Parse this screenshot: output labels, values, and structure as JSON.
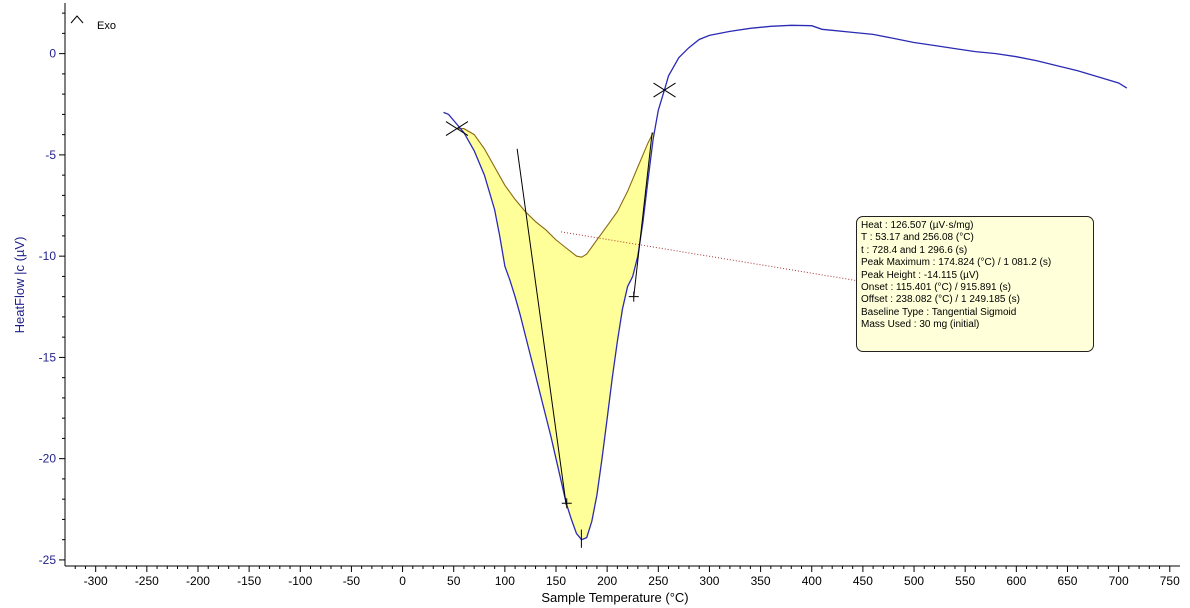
{
  "exo_label": "Exo",
  "chart_data": {
    "type": "line",
    "title": "",
    "xlabel": "Sample Temperature (°C)",
    "ylabel": "HeatFlow |c (µV)",
    "xlim": [
      -330,
      760
    ],
    "ylim": [
      -25.3,
      2.5
    ],
    "xticks": [
      -300,
      -250,
      -200,
      -150,
      -100,
      -50,
      0,
      50,
      100,
      150,
      200,
      250,
      300,
      350,
      400,
      450,
      500,
      550,
      600,
      650,
      700,
      750
    ],
    "yticks": [
      0,
      -5,
      -10,
      -15,
      -20,
      -25
    ],
    "grid": false,
    "legend": "none",
    "colors": {
      "curve": "#2b2bb4",
      "baseline": "#8b6914",
      "fill": "#ffff99",
      "leader": "#a83232",
      "axis_text": "#1f1f8a",
      "box_bg": "#ffffd9"
    },
    "series": [
      {
        "x": [
          40,
          45,
          50,
          55,
          60,
          70,
          80,
          90,
          95,
          100,
          105,
          110,
          115,
          120,
          125,
          130,
          135,
          140,
          145,
          150,
          155,
          160,
          165,
          170,
          175,
          180,
          185,
          190,
          195,
          200,
          205,
          210,
          215,
          220,
          225,
          230,
          235,
          240,
          245,
          250,
          256,
          260,
          270,
          280,
          290,
          300,
          320,
          340,
          360,
          380,
          400,
          410,
          420,
          440,
          460,
          480,
          500,
          520,
          540,
          560,
          580,
          600,
          620,
          640,
          660,
          680,
          700,
          708
        ],
        "y": [
          -2.9,
          -3.0,
          -3.3,
          -3.6,
          -3.9,
          -4.8,
          -6.0,
          -7.7,
          -9.0,
          -10.5,
          -11.2,
          -12.0,
          -12.9,
          -13.9,
          -14.9,
          -15.9,
          -16.9,
          -17.9,
          -18.9,
          -20.0,
          -21.1,
          -22.2,
          -23.0,
          -23.7,
          -24.0,
          -23.9,
          -23.1,
          -21.8,
          -20.0,
          -18.0,
          -16.0,
          -14.2,
          -12.6,
          -11.5,
          -11.0,
          -10.0,
          -8.3,
          -6.2,
          -4.2,
          -2.8,
          -1.8,
          -1.1,
          -0.2,
          0.3,
          0.7,
          0.9,
          1.1,
          1.25,
          1.35,
          1.4,
          1.38,
          1.2,
          1.15,
          1.05,
          0.95,
          0.75,
          0.55,
          0.4,
          0.25,
          0.1,
          0.0,
          -0.15,
          -0.35,
          -0.6,
          -0.85,
          -1.15,
          -1.45,
          -1.7
        ]
      },
      {
        "name": "baseline",
        "x": [
          53.17,
          60,
          70,
          80,
          90,
          100,
          110,
          120,
          130,
          140,
          150,
          160,
          170,
          175,
          180,
          190,
          200,
          210,
          220,
          230,
          240,
          245
        ],
        "y": [
          -3.7,
          -3.7,
          -4.0,
          -4.7,
          -5.6,
          -6.5,
          -7.2,
          -7.8,
          -8.3,
          -8.7,
          -9.2,
          -9.6,
          -10.0,
          -10.05,
          -9.9,
          -9.2,
          -8.5,
          -7.8,
          -6.8,
          -5.6,
          -4.4,
          -3.9
        ]
      }
    ],
    "annotations": {
      "markers_x": [
        53.17,
        256.08
      ],
      "markers_y": [
        -3.7,
        -1.8
      ],
      "onset_tangent": {
        "x": [
          112,
          160
        ],
        "y": [
          -4.7,
          -22.3
        ]
      },
      "offset_tangent": {
        "x": [
          226,
          244
        ],
        "y": [
          -12.0,
          -3.9
        ]
      },
      "peak_line": {
        "x": [
          174.8,
          174.8
        ],
        "y": [
          -23.5,
          -24.4
        ]
      },
      "crosses_x": [
        160.5,
        226.0
      ],
      "crosses_y": [
        -22.2,
        -12.0
      ],
      "leader_start": [
        155,
        -8.8
      ],
      "leader_end": [
        455,
        -11.3
      ]
    }
  },
  "results": [
    {
      "key": "Heat :",
      "value": "126.507 (µV·s/mg)"
    },
    {
      "key": "T :",
      "value": "53.17 and 256.08 (°C)"
    },
    {
      "key": "t :",
      "value": "728.4 and 1 296.6 (s)"
    },
    {
      "key": "Peak Maximum :",
      "value": "174.824 (°C) / 1 081.2 (s)"
    },
    {
      "key": "Peak Height :",
      "value": "-14.115 (µV)"
    },
    {
      "key": "Onset :",
      "value": "115.401 (°C) / 915.891 (s)"
    },
    {
      "key": "Offset :",
      "value": "238.082 (°C) / 1 249.185 (s)"
    },
    {
      "key": "Baseline Type :",
      "value": "Tangential Sigmoid"
    },
    {
      "key": "Mass Used :",
      "value": "30 mg (initial)"
    }
  ]
}
